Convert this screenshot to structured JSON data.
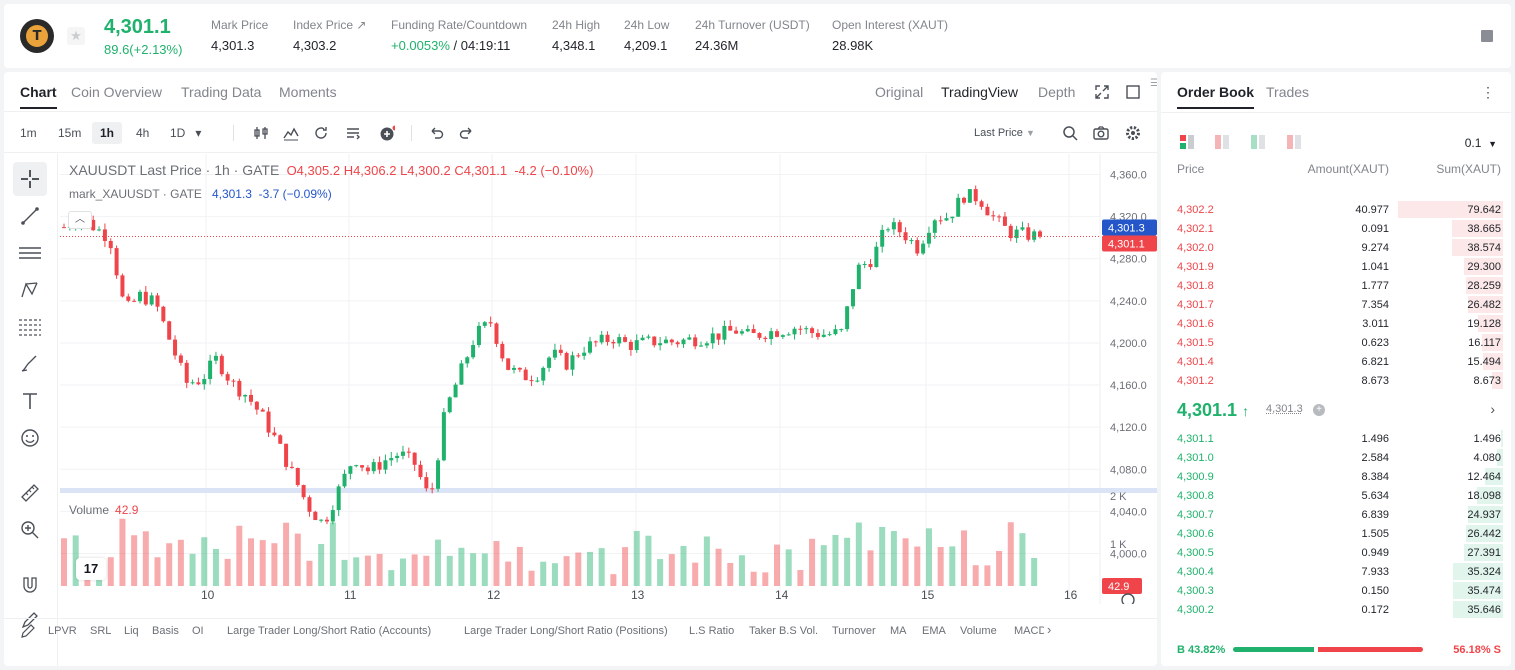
{
  "header": {
    "last_price": "4,301.1",
    "change": "89.6(+2.13%)",
    "stats": [
      {
        "label": "Mark Price",
        "value": "4,301.3"
      },
      {
        "label": "Index Price ↗",
        "value": "4,303.2"
      },
      {
        "label": "Funding Rate/Countdown",
        "value_green": "+0.0053%",
        "value": " / 04:19:11"
      },
      {
        "label": "24h High",
        "value": "4,348.1"
      },
      {
        "label": "24h Low",
        "value": "4,209.1"
      },
      {
        "label": "24h Turnover (USDT)",
        "value": "24.36M"
      },
      {
        "label": "Open Interest (XAUT)",
        "value": "28.98K"
      }
    ]
  },
  "chart_tabs": [
    "Chart",
    "Coin Overview",
    "Trading Data",
    "Moments"
  ],
  "view_tabs": [
    "Original",
    "TradingView",
    "Depth"
  ],
  "timeframes": [
    "1m",
    "15m",
    "1h",
    "4h",
    "1D"
  ],
  "price_type": "Last Price",
  "legend": {
    "symbol": "XAUUSDT Last Price · 1h · GATE",
    "o": "O4,305.2",
    "h": "H4,306.2",
    "l": "L4,300.2",
    "c": "C4,301.1",
    "chg": "-4.2 (−0.10%)",
    "mark": "mark_XAUUSDT · GATE",
    "mark_val": "4,301.3",
    "mark_chg": "-3.7 (−0.09%)"
  },
  "volume_legend": {
    "label": "Volume",
    "value": "42.9"
  },
  "tv_logo": "17",
  "indicators": [
    "LPVR",
    "SRL",
    "Liq",
    "Basis",
    "OI",
    "Large Trader Long/Short Ratio (Accounts)",
    "Large Trader Long/Short Ratio (Positions)",
    "L.S Ratio",
    "Taker B.S Vol.",
    "Turnover",
    "MA",
    "EMA",
    "Volume",
    "MACD"
  ],
  "chart_data": {
    "type": "candlestick",
    "symbol": "XAUUSDT",
    "interval": "1h",
    "x_ticks": [
      "10",
      "11",
      "12",
      "13",
      "14",
      "15",
      "16"
    ],
    "y_ticks": [
      "4,360.0",
      "4,320.0",
      "4,280.0",
      "4,240.0",
      "4,200.0",
      "4,160.0",
      "4,120.0",
      "4,080.0",
      "4,040.0",
      "4,000.0"
    ],
    "ylim": [
      3990,
      4370
    ],
    "volume_ticks": [
      "2 K",
      "1 K"
    ],
    "mark_label": "4,301.3",
    "last_label": "4,301.1",
    "volume_label": "42.9",
    "close_path": [
      4310,
      4320,
      4310,
      4300,
      4230,
      4245,
      4238,
      4200,
      4162,
      4165,
      4185,
      4162,
      4150,
      4130,
      4105,
      4075,
      4045,
      4028,
      4060,
      4092,
      4078,
      4088,
      4095,
      4085,
      4050,
      4135,
      4172,
      4208,
      4220,
      4178,
      4168,
      4170,
      4190,
      4180,
      4195,
      4200,
      4205,
      4198,
      4200,
      4202,
      4201,
      4203,
      4205,
      4208,
      4212,
      4206,
      4210,
      4212,
      4215,
      4210,
      4208,
      4210,
      4270,
      4280,
      4312,
      4305,
      4290,
      4320,
      4320,
      4340,
      4338,
      4318,
      4305,
      4303,
      4301.1
    ]
  },
  "orderbook": {
    "tabs": [
      "Order Book",
      "Trades"
    ],
    "precision": "0.1",
    "headers": [
      "Price",
      "Amount(XAUT)",
      "Sum(XAUT)"
    ],
    "asks": [
      {
        "p": "4,302.2",
        "a": "40.977",
        "s": "79.642",
        "f": 1.0
      },
      {
        "p": "4,302.1",
        "a": "0.091",
        "s": "38.665",
        "f": 0.485
      },
      {
        "p": "4,302.0",
        "a": "9.274",
        "s": "38.574",
        "f": 0.484
      },
      {
        "p": "4,301.9",
        "a": "1.041",
        "s": "29.300",
        "f": 0.368
      },
      {
        "p": "4,301.8",
        "a": "1.777",
        "s": "28.259",
        "f": 0.355
      },
      {
        "p": "4,301.7",
        "a": "7.354",
        "s": "26.482",
        "f": 0.333
      },
      {
        "p": "4,301.6",
        "a": "3.011",
        "s": "19.128",
        "f": 0.24
      },
      {
        "p": "4,301.5",
        "a": "0.623",
        "s": "16.117",
        "f": 0.202
      },
      {
        "p": "4,301.4",
        "a": "6.821",
        "s": "15.494",
        "f": 0.195
      },
      {
        "p": "4,301.2",
        "a": "8.673",
        "s": "8.673",
        "f": 0.109
      }
    ],
    "mid": {
      "price": "4,301.1",
      "mark": "4,301.3"
    },
    "bids": [
      {
        "p": "4,301.1",
        "a": "1.496",
        "s": "1.496",
        "f": 0.02
      },
      {
        "p": "4,301.0",
        "a": "2.584",
        "s": "4.080",
        "f": 0.055
      },
      {
        "p": "4,300.9",
        "a": "8.384",
        "s": "12.464",
        "f": 0.168
      },
      {
        "p": "4,300.8",
        "a": "5.634",
        "s": "18.098",
        "f": 0.244
      },
      {
        "p": "4,300.7",
        "a": "6.839",
        "s": "24.937",
        "f": 0.336
      },
      {
        "p": "4,300.6",
        "a": "1.505",
        "s": "26.442",
        "f": 0.356
      },
      {
        "p": "4,300.5",
        "a": "0.949",
        "s": "27.391",
        "f": 0.369
      },
      {
        "p": "4,300.4",
        "a": "7.933",
        "s": "35.324",
        "f": 0.476
      },
      {
        "p": "4,300.3",
        "a": "0.150",
        "s": "35.474",
        "f": 0.478
      },
      {
        "p": "4,300.2",
        "a": "0.172",
        "s": "35.646",
        "f": 0.48
      }
    ],
    "ratio": {
      "buy": "B 43.82%",
      "sell": "56.18% S",
      "buy_fraction": 0.4382
    }
  },
  "colors": {
    "up": "#20b26c",
    "down": "#ef454a",
    "mark": "#2456c9"
  }
}
